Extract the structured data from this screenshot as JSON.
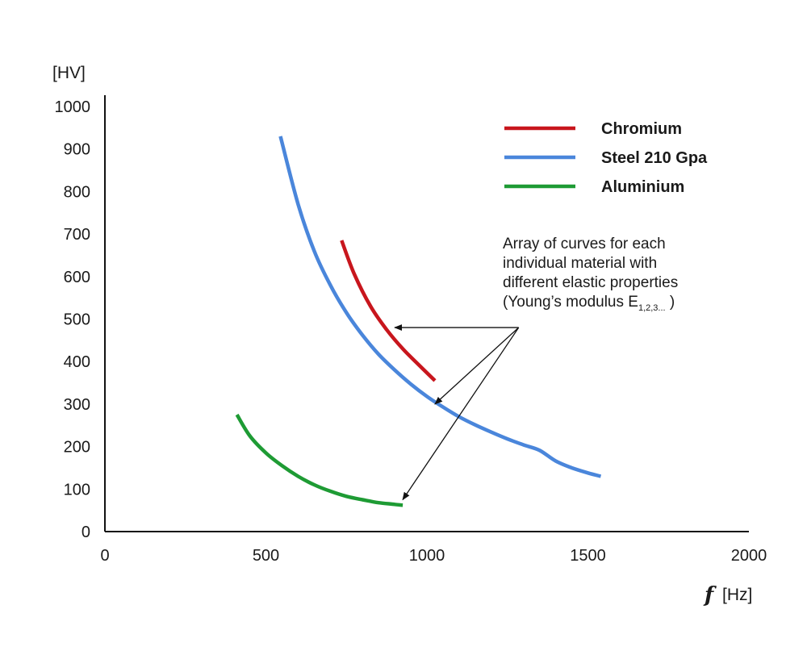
{
  "chart_data": {
    "type": "line",
    "xlabel_var": "f",
    "xlabel_unit": "[Hz]",
    "ylabel": "[HV]",
    "xlim": [
      0,
      2000
    ],
    "ylim": [
      0,
      1000
    ],
    "xticks": [
      "0",
      "500",
      "1000",
      "1500",
      "2000"
    ],
    "yticks": [
      "0",
      "100",
      "200",
      "300",
      "400",
      "500",
      "600",
      "700",
      "800",
      "900",
      "1000"
    ],
    "grid": false,
    "legend_position": "top-right",
    "series": [
      {
        "name": "Chromium",
        "color": "#c8161d",
        "points": [
          [
            735,
            685
          ],
          [
            775,
            605
          ],
          [
            825,
            530
          ],
          [
            875,
            475
          ],
          [
            925,
            430
          ],
          [
            975,
            392
          ],
          [
            1025,
            355
          ]
        ]
      },
      {
        "name": "Steel 210 Gpa",
        "color": "#4a86db",
        "points": [
          [
            545,
            930
          ],
          [
            600,
            770
          ],
          [
            650,
            660
          ],
          [
            700,
            580
          ],
          [
            750,
            515
          ],
          [
            800,
            462
          ],
          [
            850,
            417
          ],
          [
            900,
            380
          ],
          [
            950,
            347
          ],
          [
            1000,
            318
          ],
          [
            1050,
            293
          ],
          [
            1100,
            270
          ],
          [
            1150,
            251
          ],
          [
            1200,
            234
          ],
          [
            1250,
            218
          ],
          [
            1300,
            204
          ],
          [
            1350,
            191
          ],
          [
            1400,
            166
          ],
          [
            1450,
            150
          ],
          [
            1500,
            138
          ],
          [
            1540,
            130
          ]
        ]
      },
      {
        "name": "Aluminium",
        "color": "#1e9b34",
        "points": [
          [
            410,
            275
          ],
          [
            450,
            225
          ],
          [
            500,
            185
          ],
          [
            550,
            155
          ],
          [
            600,
            130
          ],
          [
            650,
            110
          ],
          [
            700,
            95
          ],
          [
            750,
            83
          ],
          [
            800,
            75
          ],
          [
            850,
            68
          ],
          [
            900,
            64
          ],
          [
            925,
            62
          ]
        ]
      }
    ],
    "annotation": {
      "lines": [
        "Array of curves for each",
        "individual material with",
        "different elastic properties",
        "(Young’s modulus E"
      ],
      "subscript": "1,2,3...",
      "closing": " )",
      "arrow_origin": [
        1285,
        480
      ],
      "arrow_targets": [
        [
          900,
          480
        ],
        [
          1025,
          300
        ],
        [
          925,
          75
        ]
      ]
    }
  }
}
